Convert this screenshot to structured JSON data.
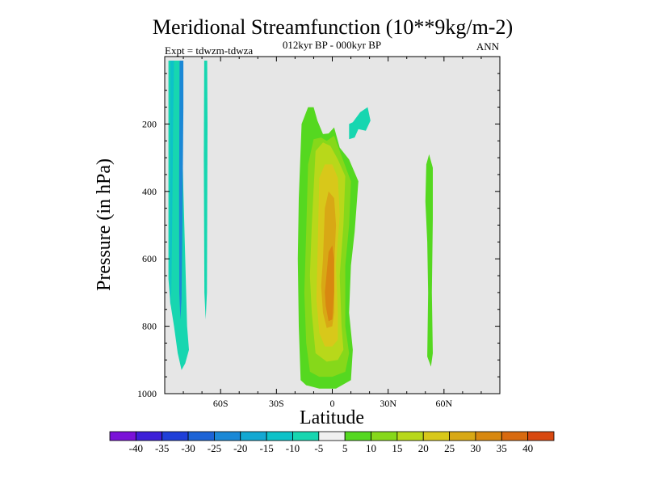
{
  "chart_data": {
    "type": "contour",
    "title": "Meridional Streamfunction (10**9kg/m-2)",
    "subtitle": "012kyr BP - 000kyr BP",
    "left_label": "Expt = tdwzm-tdwza",
    "right_label": "ANN",
    "xlabel": "Latitude",
    "ylabel": "Pressure (in hPa)",
    "xlim": [
      -90,
      90
    ],
    "ylim": [
      1000,
      0
    ],
    "x_ticks": [
      {
        "value": -60,
        "label": "60S"
      },
      {
        "value": -30,
        "label": "30S"
      },
      {
        "value": 0,
        "label": "0"
      },
      {
        "value": 30,
        "label": "30N"
      },
      {
        "value": 60,
        "label": "60N"
      }
    ],
    "y_ticks": [
      {
        "value": 200,
        "label": "200"
      },
      {
        "value": 400,
        "label": "400"
      },
      {
        "value": 600,
        "label": "600"
      },
      {
        "value": 800,
        "label": "800"
      },
      {
        "value": 1000,
        "label": "1000"
      }
    ],
    "background_color": "#e6e6e6",
    "colorbar": {
      "labels": [
        "-40",
        "-35",
        "-30",
        "-25",
        "-20",
        "-15",
        "-10",
        "-5",
        "5",
        "10",
        "15",
        "20",
        "25",
        "30",
        "35",
        "40"
      ],
      "colors": [
        "#7a12d8",
        "#3d1fd8",
        "#1f3fd8",
        "#1c63d6",
        "#1a88d6",
        "#13a8d2",
        "#0dc2c8",
        "#17d6b0",
        "#f0f0f0",
        "#55d820",
        "#86d81a",
        "#b8d81a",
        "#d8c81a",
        "#d8a815",
        "#d88810",
        "#d86a10",
        "#d84810"
      ]
    },
    "regions": [
      {
        "name": "sh-band-outer",
        "level": "-10",
        "color": "#17d6b0",
        "points": [
          [
            -88,
            12
          ],
          [
            -82,
            12
          ],
          [
            -81,
            140
          ],
          [
            -80,
            400
          ],
          [
            -78,
            800
          ],
          [
            -77,
            870
          ],
          [
            -79,
            910
          ],
          [
            -81,
            930
          ],
          [
            -83,
            880
          ],
          [
            -85,
            800
          ],
          [
            -87,
            730
          ],
          [
            -88,
            660
          ]
        ]
      },
      {
        "name": "sh-band-inner",
        "level": "-15",
        "color": "#0dc2c8",
        "points": [
          [
            -87,
            12
          ],
          [
            -85,
            12
          ],
          [
            -85.5,
            200
          ],
          [
            -86,
            500
          ],
          [
            -86.5,
            700
          ],
          [
            -87,
            740
          ],
          [
            -87.3,
            600
          ]
        ]
      },
      {
        "name": "sh-band-core",
        "level": "-20",
        "color": "#1a88d6",
        "points": [
          [
            -82,
            12
          ],
          [
            -80,
            12
          ],
          [
            -80,
            150
          ],
          [
            -80.5,
            500
          ],
          [
            -81,
            720
          ],
          [
            -81.6,
            780
          ],
          [
            -82.2,
            700
          ],
          [
            -82.3,
            400
          ]
        ]
      },
      {
        "name": "sh-thin-column",
        "level": "-10",
        "color": "#17d6b0",
        "points": [
          [
            -68.8,
            12
          ],
          [
            -67.2,
            12
          ],
          [
            -67,
            200
          ],
          [
            -67.3,
            700
          ],
          [
            -68,
            780
          ],
          [
            -68.7,
            700
          ],
          [
            -69,
            300
          ]
        ]
      },
      {
        "name": "upper-trop-patch",
        "level": "-10",
        "color": "#17d6b0",
        "points": [
          [
            9,
            200
          ],
          [
            11,
            195
          ],
          [
            15,
            165
          ],
          [
            19,
            150
          ],
          [
            20.5,
            190
          ],
          [
            18,
            220
          ],
          [
            14,
            215
          ],
          [
            12,
            240
          ],
          [
            9,
            245
          ]
        ]
      },
      {
        "name": "cell-level-5",
        "level": "5",
        "color": "#55d820",
        "points": [
          [
            -18,
            420
          ],
          [
            -16.5,
            200
          ],
          [
            -13,
            150
          ],
          [
            -10,
            150
          ],
          [
            -8,
            190
          ],
          [
            -5,
            230
          ],
          [
            -2,
            228
          ],
          [
            1,
            210
          ],
          [
            4,
            270
          ],
          [
            9,
            305
          ],
          [
            14,
            370
          ],
          [
            12,
            520
          ],
          [
            10,
            620
          ],
          [
            9,
            760
          ],
          [
            11,
            870
          ],
          [
            10,
            960
          ],
          [
            2,
            985
          ],
          [
            -7,
            985
          ],
          [
            -14,
            975
          ],
          [
            -17,
            960
          ],
          [
            -18,
            800
          ],
          [
            -18.5,
            600
          ]
        ]
      },
      {
        "name": "cell-level-10",
        "level": "10",
        "color": "#86d81a",
        "points": [
          [
            -14,
            520
          ],
          [
            -13,
            320
          ],
          [
            -10,
            245
          ],
          [
            -6,
            240
          ],
          [
            -3,
            250
          ],
          [
            1,
            235
          ],
          [
            4,
            280
          ],
          [
            8,
            340
          ],
          [
            10,
            370
          ],
          [
            9,
            500
          ],
          [
            7,
            620
          ],
          [
            7,
            800
          ],
          [
            9,
            880
          ],
          [
            7,
            935
          ],
          [
            0,
            950
          ],
          [
            -7,
            950
          ],
          [
            -12,
            935
          ],
          [
            -14,
            850
          ],
          [
            -15,
            700
          ]
        ]
      },
      {
        "name": "cell-level-15",
        "level": "15",
        "color": "#b8d81a",
        "points": [
          [
            -11,
            500
          ],
          [
            -9,
            280
          ],
          [
            -5,
            255
          ],
          [
            -1,
            265
          ],
          [
            3,
            305
          ],
          [
            7,
            355
          ],
          [
            6,
            500
          ],
          [
            4,
            650
          ],
          [
            5,
            800
          ],
          [
            6,
            870
          ],
          [
            3,
            900
          ],
          [
            -3,
            905
          ],
          [
            -9,
            880
          ],
          [
            -11,
            760
          ],
          [
            -12,
            650
          ]
        ]
      },
      {
        "name": "cell-level-20",
        "level": "20",
        "color": "#d8c81a",
        "points": [
          [
            -8,
            600
          ],
          [
            -7,
            360
          ],
          [
            -4,
            320
          ],
          [
            0,
            320
          ],
          [
            3,
            360
          ],
          [
            4,
            470
          ],
          [
            2,
            620
          ],
          [
            3,
            760
          ],
          [
            3,
            840
          ],
          [
            0,
            860
          ],
          [
            -4,
            860
          ],
          [
            -7,
            820
          ],
          [
            -8.5,
            720
          ]
        ]
      },
      {
        "name": "cell-level-25",
        "level": "25",
        "color": "#d8a815",
        "points": [
          [
            -5,
            600
          ],
          [
            -4,
            450
          ],
          [
            -2,
            400
          ],
          [
            1,
            420
          ],
          [
            2,
            500
          ],
          [
            1,
            620
          ],
          [
            1,
            760
          ],
          [
            0,
            800
          ],
          [
            -3,
            805
          ],
          [
            -5,
            760
          ],
          [
            -6,
            680
          ]
        ]
      },
      {
        "name": "cell-level-30",
        "level": "30",
        "color": "#d88810",
        "points": [
          [
            -3,
            640
          ],
          [
            -2,
            580
          ],
          [
            0,
            560
          ],
          [
            1,
            600
          ],
          [
            1,
            700
          ],
          [
            0,
            780
          ],
          [
            -2,
            785
          ],
          [
            -3.5,
            740
          ],
          [
            -4,
            700
          ]
        ]
      },
      {
        "name": "nh-band",
        "level": "5",
        "color": "#55d820",
        "points": [
          [
            50,
            430
          ],
          [
            50.5,
            320
          ],
          [
            52,
            290
          ],
          [
            54,
            330
          ],
          [
            54,
            480
          ],
          [
            53.5,
            700
          ],
          [
            54,
            880
          ],
          [
            53,
            920
          ],
          [
            51,
            890
          ],
          [
            51.5,
            700
          ],
          [
            51,
            550
          ]
        ]
      }
    ]
  }
}
